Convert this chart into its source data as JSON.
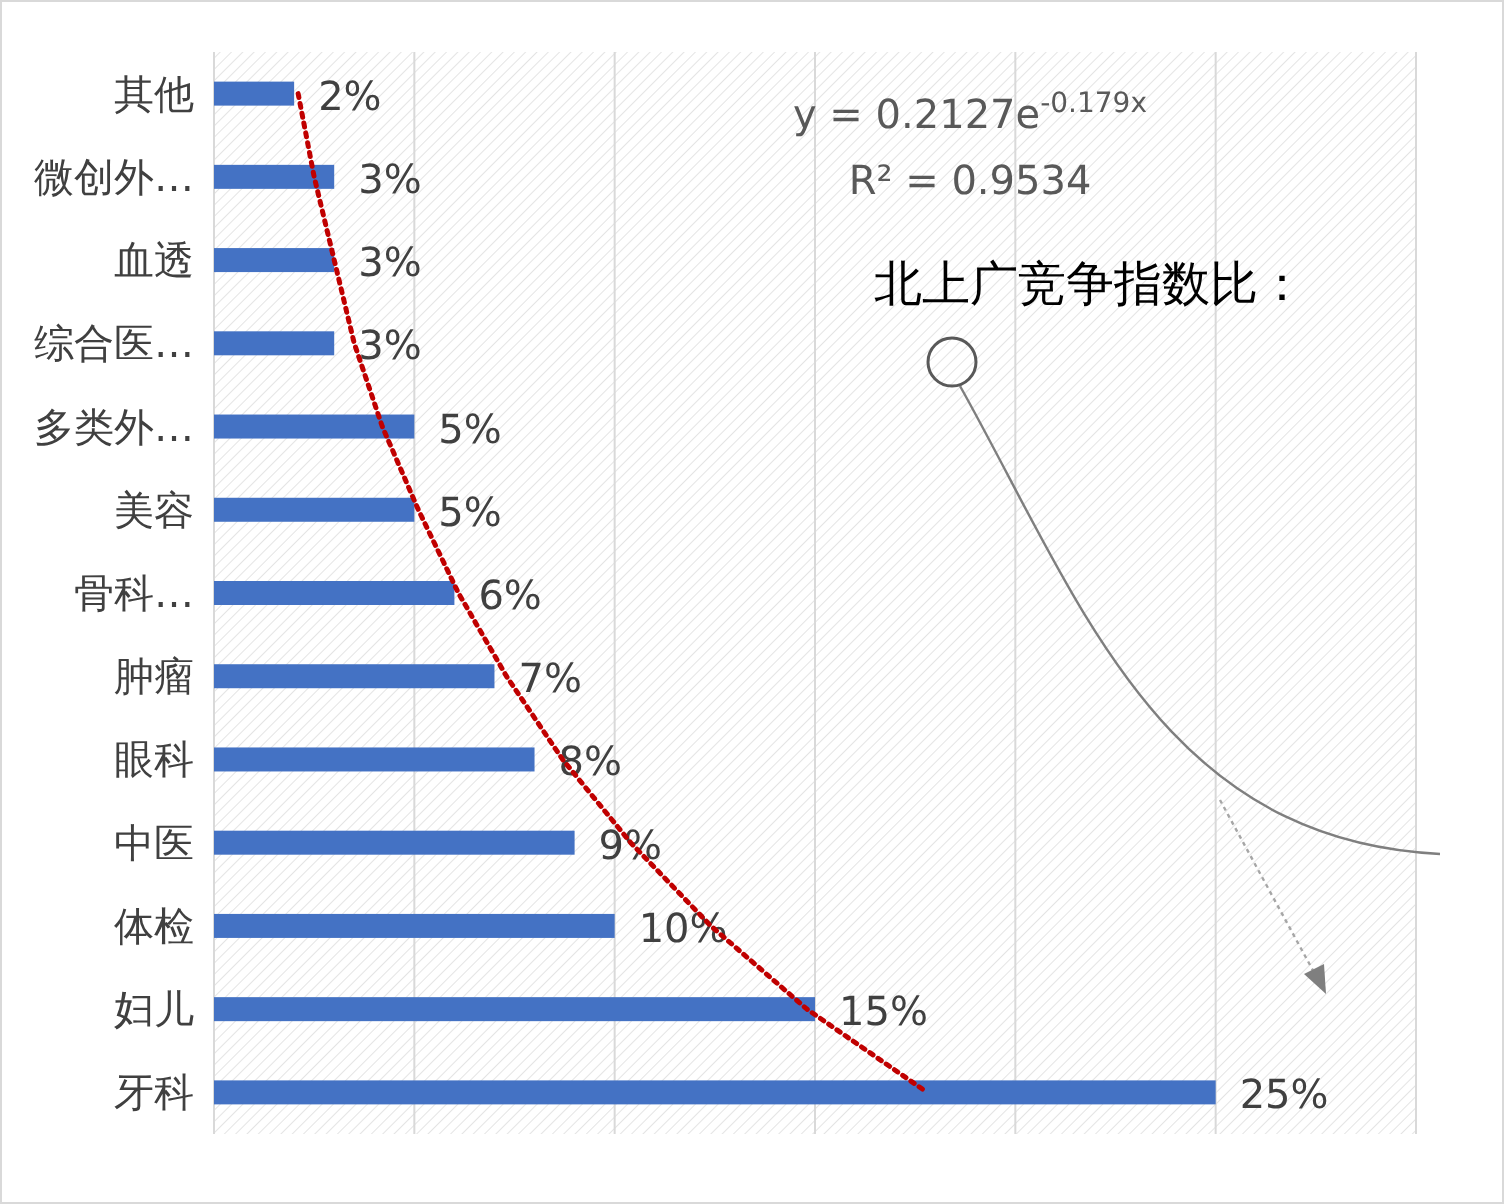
{
  "chart_data": {
    "type": "bar",
    "orientation": "horizontal",
    "categories": [
      "其他",
      "微创外…",
      "血透",
      "综合医…",
      "多类外…",
      "美容",
      "骨科…",
      "肿瘤",
      "眼科",
      "中医",
      "体检",
      "妇儿",
      "牙科"
    ],
    "series": [
      {
        "color": "#4472c4",
        "values": [
          2,
          3,
          3,
          3,
          5,
          5,
          6,
          7,
          8,
          9,
          10,
          15,
          25
        ],
        "value_labels": [
          "2%",
          "3%",
          "3%",
          "3%",
          "5%",
          "5%",
          "6%",
          "7%",
          "8%",
          "9%",
          "10%",
          "15%",
          "25%"
        ]
      },
      {
        "type": "line",
        "color": "#c00000",
        "line_style": "dotted",
        "marker": "none",
        "values": [
          2.1,
          2.5,
          3.0,
          3.5,
          4.2,
          5.1,
          6.1,
          7.3,
          8.7,
          10.4,
          12.4,
          14.8,
          17.8
        ]
      }
    ],
    "xlim": [
      0,
      30
    ],
    "xticks": [
      {
        "value": 0,
        "label": null
      },
      {
        "value": 5,
        "label": null
      },
      {
        "value": 10,
        "label": null
      },
      {
        "value": 15,
        "label": null
      },
      {
        "value": 20,
        "label": null
      },
      {
        "value": 25,
        "label": null
      },
      {
        "value": 30,
        "label": null
      }
    ],
    "grid": "x",
    "tick_labels": "y",
    "annotations": [
      "y = 0.2127e$^{-0.179x}$",
      "R² = 0.9534",
      "北上广竞争指数比："
    ]
  }
}
